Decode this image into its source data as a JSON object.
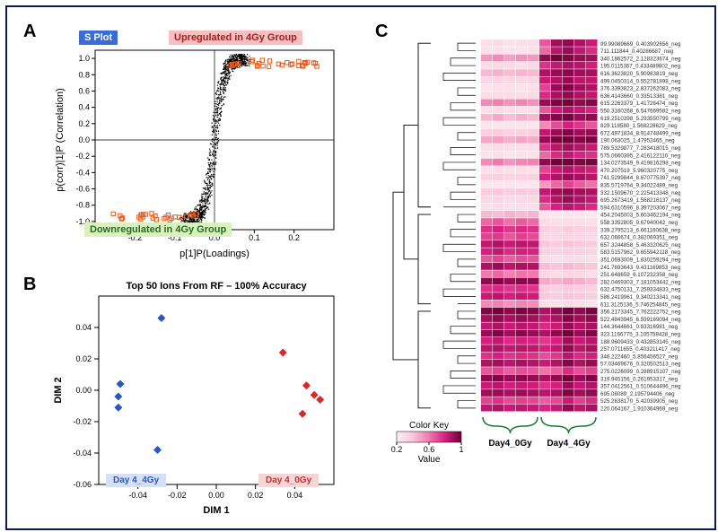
{
  "frame_border_color": "#0a1a5a",
  "panels": {
    "A": "A",
    "B": "B",
    "C": "C"
  },
  "s_plot": {
    "tag_splot": "S Plot",
    "tag_splot_bg": "#3a6bd6",
    "tag_splot_fg": "#ffffff",
    "tag_up": "Upregulated in 4Gy Group",
    "tag_up_bg": "#f6c0c0",
    "tag_up_fg": "#a02020",
    "tag_down": "Downregulated in 4Gy Group",
    "tag_down_bg": "#d9f0c0",
    "tag_down_fg": "#2a6a1a",
    "xlabel": "p[1]P(Loadings)",
    "ylabel": "p(corr)|1|P (Correlation)",
    "xlim": [
      -0.3,
      0.3
    ],
    "ylim": [
      -1.1,
      1.1
    ],
    "xticks": [
      -0.2,
      -0.1,
      0,
      0.1,
      0.2
    ],
    "yticks": [
      -1.0,
      -0.8,
      -0.6,
      -0.4,
      -0.2,
      0,
      0.2,
      0.4,
      0.6,
      0.8,
      1.0
    ],
    "point_color": "#000000",
    "highlight_color": "#e85a1a",
    "highlight_border": "#8a0000"
  },
  "scatter_b": {
    "title": "Top 50 Ions From RF – 100% Accuracy",
    "xlabel": "DIM 1",
    "ylabel": "DIM 2",
    "xlim": [
      -0.06,
      0.06
    ],
    "ylim": [
      -0.06,
      0.06
    ],
    "xticks": [
      -0.04,
      -0.02,
      0.0,
      0.02,
      0.04
    ],
    "yticks": [
      -0.06,
      -0.04,
      -0.02,
      0.0,
      0.02,
      0.04
    ],
    "group_a": {
      "label": "Day 4_4Gy",
      "color": "#2a56c6",
      "bg": "#d6e0f5",
      "points": [
        [
          -0.049,
          0.004
        ],
        [
          -0.05,
          -0.004
        ],
        [
          -0.05,
          -0.011
        ],
        [
          -0.028,
          0.046
        ],
        [
          -0.03,
          -0.038
        ]
      ]
    },
    "group_b": {
      "label": "Day 4_0Gy",
      "color": "#d62a2a",
      "bg": "#f5d6d6",
      "points": [
        [
          0.034,
          0.024
        ],
        [
          0.046,
          0.003
        ],
        [
          0.05,
          -0.003
        ],
        [
          0.053,
          -0.006
        ],
        [
          0.044,
          -0.015
        ]
      ]
    }
  },
  "heatmap": {
    "color_scale": [
      "#fdeef3",
      "#f8c8da",
      "#ef7bac",
      "#d61f7f",
      "#6d0037"
    ],
    "col_labels_left": "Day4_0Gy",
    "col_labels_right": "Day4_4Gy",
    "brace_color": "#1a7a33",
    "color_key_title": "Color Key",
    "color_key_axis": "Value",
    "color_key_ticks": [
      "0.2",
      "0.6",
      "1"
    ],
    "n_cols": 10,
    "rows": [
      {
        "label": "99.99089669_0.403902656_neg",
        "v": [
          0.1,
          0.12,
          0.08,
          0.09,
          0.11,
          0.6,
          0.88,
          0.92,
          0.85,
          0.78
        ]
      },
      {
        "label": "711.111844_0.40286687_neg",
        "v": [
          0.09,
          0.1,
          0.07,
          0.08,
          0.1,
          0.55,
          0.82,
          0.9,
          0.8,
          0.72
        ]
      },
      {
        "label": "340.1862572_2.128323674_neg",
        "v": [
          0.4,
          0.45,
          0.38,
          0.43,
          0.41,
          0.92,
          0.98,
          0.95,
          0.9,
          0.88
        ]
      },
      {
        "label": "195.0115367_0.433489802_neg",
        "v": [
          0.12,
          0.14,
          0.13,
          0.12,
          0.13,
          0.7,
          0.8,
          0.85,
          0.82,
          0.76
        ]
      },
      {
        "label": "616.3623820_5.90983819_neg",
        "v": [
          0.3,
          0.32,
          0.28,
          0.31,
          0.29,
          0.85,
          0.9,
          0.93,
          0.88,
          0.86
        ]
      },
      {
        "label": "499.0450314_0.552781898_neg",
        "v": [
          0.15,
          0.17,
          0.14,
          0.15,
          0.16,
          0.78,
          0.85,
          0.9,
          0.82,
          0.8
        ]
      },
      {
        "label": "376.3393823_2.837262083_neg",
        "v": [
          0.08,
          0.1,
          0.09,
          0.08,
          0.09,
          0.65,
          0.9,
          0.95,
          0.88,
          0.84
        ]
      },
      {
        "label": "636.4143660_0.33513381_neg",
        "v": [
          0.12,
          0.12,
          0.11,
          0.12,
          0.13,
          0.72,
          0.86,
          0.92,
          0.85,
          0.8
        ]
      },
      {
        "label": "615.2263379_1.41726474_neg",
        "v": [
          0.45,
          0.48,
          0.42,
          0.46,
          0.43,
          0.9,
          0.96,
          0.98,
          0.92,
          0.94
        ]
      },
      {
        "label": "550.3160268_6.547669582_neg",
        "v": [
          0.1,
          0.11,
          0.09,
          0.1,
          0.1,
          0.6,
          0.78,
          0.85,
          0.8,
          0.74
        ]
      },
      {
        "label": "619.2510398_5.293550799_neg",
        "v": [
          0.3,
          0.35,
          0.28,
          0.33,
          0.3,
          0.88,
          0.94,
          0.97,
          0.9,
          0.92
        ]
      },
      {
        "label": "829.118580_1.568228629_neg",
        "v": [
          0.05,
          0.06,
          0.05,
          0.05,
          0.06,
          0.45,
          0.62,
          0.75,
          0.68,
          0.6
        ]
      },
      {
        "label": "672.4971834_8.914748499_neg",
        "v": [
          0.2,
          0.22,
          0.18,
          0.19,
          0.21,
          0.8,
          0.9,
          0.95,
          0.88,
          0.9
        ]
      },
      {
        "label": "190.063025_1.47952465_neg",
        "v": [
          0.35,
          0.38,
          0.32,
          0.36,
          0.34,
          0.9,
          0.97,
          0.99,
          0.94,
          0.96
        ]
      },
      {
        "label": "789.5329877_7.283418015_neg",
        "v": [
          0.12,
          0.13,
          0.11,
          0.12,
          0.12,
          0.7,
          0.82,
          0.88,
          0.83,
          0.78
        ]
      },
      {
        "label": "575.0660395_2.416122110_neg",
        "v": [
          0.08,
          0.09,
          0.07,
          0.08,
          0.08,
          0.55,
          0.72,
          0.8,
          0.74,
          0.7
        ]
      },
      {
        "label": "134.0273549_9.419816298_neg",
        "v": [
          0.45,
          0.5,
          0.42,
          0.46,
          0.48,
          0.92,
          0.98,
          0.99,
          0.95,
          0.97
        ]
      },
      {
        "label": "470.207519_5.960320775_neg",
        "v": [
          0.1,
          0.12,
          0.1,
          0.11,
          0.1,
          0.65,
          0.78,
          0.84,
          0.8,
          0.76
        ]
      },
      {
        "label": "741.5299844_8.670775397_neg",
        "v": [
          0.18,
          0.2,
          0.17,
          0.18,
          0.19,
          0.75,
          0.85,
          0.9,
          0.86,
          0.82
        ]
      },
      {
        "label": "835.5719764_9.34022489_neg",
        "v": [
          0.06,
          0.07,
          0.06,
          0.06,
          0.06,
          0.4,
          0.55,
          0.65,
          0.58,
          0.52
        ]
      },
      {
        "label": "332.1509670_2.225413348_neg",
        "v": [
          0.22,
          0.25,
          0.2,
          0.23,
          0.22,
          0.8,
          0.88,
          0.92,
          0.87,
          0.85
        ]
      },
      {
        "label": "695.2673419_1.568216137_neg",
        "v": [
          0.14,
          0.15,
          0.13,
          0.14,
          0.14,
          0.72,
          0.84,
          0.9,
          0.85,
          0.8
        ]
      },
      {
        "label": "594.6310596_8.397203067_neg",
        "v": [
          0.1,
          0.11,
          0.09,
          0.1,
          0.1,
          0.6,
          0.75,
          0.82,
          0.78,
          0.72
        ]
      },
      {
        "label": "454.2045003_5.603462194_neg",
        "v": [
          0.3,
          0.28,
          0.32,
          0.29,
          0.31,
          0.05,
          0.04,
          0.06,
          0.05,
          0.04
        ]
      },
      {
        "label": "558.3352805_9.67940042_neg",
        "v": [
          0.55,
          0.6,
          0.52,
          0.58,
          0.54,
          0.12,
          0.1,
          0.11,
          0.12,
          0.1
        ]
      },
      {
        "label": "339.2795213_6.661160638_neg",
        "v": [
          0.7,
          0.75,
          0.68,
          0.72,
          0.7,
          0.2,
          0.18,
          0.22,
          0.2,
          0.18
        ]
      },
      {
        "label": "632.066674_0.382069351_neg",
        "v": [
          0.65,
          0.68,
          0.6,
          0.66,
          0.63,
          0.15,
          0.14,
          0.16,
          0.15,
          0.13
        ]
      },
      {
        "label": "657.3244858_5.463320625_neg",
        "v": [
          0.8,
          0.85,
          0.78,
          0.82,
          0.8,
          0.25,
          0.22,
          0.26,
          0.24,
          0.22
        ]
      },
      {
        "label": "583.5157962_9.655942118_neg",
        "v": [
          0.75,
          0.8,
          0.72,
          0.76,
          0.74,
          0.2,
          0.18,
          0.2,
          0.19,
          0.17
        ]
      },
      {
        "label": "351.0693009_1.830259294_neg",
        "v": [
          0.6,
          0.65,
          0.58,
          0.62,
          0.6,
          0.12,
          0.1,
          0.13,
          0.11,
          0.1
        ]
      },
      {
        "label": "241.7693643_9.431169853_neg",
        "v": [
          0.85,
          0.9,
          0.82,
          0.86,
          0.84,
          0.28,
          0.26,
          0.3,
          0.27,
          0.25
        ]
      },
      {
        "label": "251.648659_6.107232358_neg",
        "v": [
          0.5,
          0.55,
          0.48,
          0.52,
          0.5,
          0.15,
          0.12,
          0.16,
          0.14,
          0.12
        ]
      },
      {
        "label": "282.0469303_7.181053442_neg",
        "v": [
          0.92,
          0.95,
          0.9,
          0.93,
          0.91,
          0.35,
          0.32,
          0.36,
          0.33,
          0.3
        ]
      },
      {
        "label": "632.4750131_7.259334833_neg",
        "v": [
          0.7,
          0.73,
          0.68,
          0.71,
          0.69,
          0.22,
          0.2,
          0.23,
          0.21,
          0.19
        ]
      },
      {
        "label": "586.2419961_9.340213341_neg",
        "v": [
          0.78,
          0.82,
          0.76,
          0.79,
          0.77,
          0.24,
          0.22,
          0.25,
          0.23,
          0.21
        ]
      },
      {
        "label": "611.3125136_5.746254845_neg",
        "v": [
          0.45,
          0.48,
          0.42,
          0.46,
          0.44,
          0.1,
          0.08,
          0.11,
          0.09,
          0.08
        ]
      },
      {
        "label": "356.2173345_7.762222752_neg",
        "v": [
          0.95,
          0.98,
          0.92,
          0.96,
          0.94,
          0.85,
          0.9,
          0.98,
          0.92,
          0.96
        ]
      },
      {
        "label": "522.4843945_6.599169094_neg",
        "v": [
          0.88,
          0.92,
          0.86,
          0.9,
          0.88,
          0.8,
          0.85,
          0.95,
          0.88,
          0.92
        ]
      },
      {
        "label": "144.3644661_0.83316981_neg",
        "v": [
          0.8,
          0.85,
          0.78,
          0.82,
          0.8,
          0.72,
          0.78,
          0.9,
          0.82,
          0.86
        ]
      },
      {
        "label": "323.1166775_3.105759428_neg",
        "v": [
          0.9,
          0.96,
          0.88,
          0.93,
          0.9,
          0.85,
          0.92,
          0.99,
          0.9,
          0.95
        ]
      },
      {
        "label": "188.9609433_0.432853145_neg",
        "v": [
          0.75,
          0.8,
          0.72,
          0.76,
          0.74,
          0.68,
          0.75,
          0.88,
          0.78,
          0.82
        ]
      },
      {
        "label": "257.0711655_0.403211417_neg",
        "v": [
          0.82,
          0.85,
          0.8,
          0.83,
          0.81,
          0.75,
          0.8,
          0.92,
          0.82,
          0.86
        ]
      },
      {
        "label": "346.222460_5.856456527_neg",
        "v": [
          0.7,
          0.75,
          0.68,
          0.72,
          0.7,
          0.62,
          0.68,
          0.82,
          0.72,
          0.76
        ]
      },
      {
        "label": "57.03469676_0.320502513_neg",
        "v": [
          0.85,
          0.88,
          0.82,
          0.86,
          0.84,
          0.78,
          0.84,
          0.94,
          0.85,
          0.9
        ]
      },
      {
        "label": "275.0226099_0.288915107_neg",
        "v": [
          0.6,
          0.65,
          0.58,
          0.62,
          0.6,
          0.52,
          0.58,
          0.72,
          0.62,
          0.66
        ]
      },
      {
        "label": "319.945156_0.261953317_neg",
        "v": [
          0.92,
          0.95,
          0.9,
          0.93,
          0.91,
          0.86,
          0.92,
          0.99,
          0.9,
          0.96
        ]
      },
      {
        "label": "357.0412561_0.510644496_neg",
        "v": [
          0.78,
          0.82,
          0.76,
          0.79,
          0.77,
          0.7,
          0.76,
          0.9,
          0.8,
          0.84
        ]
      },
      {
        "label": "695.08089_2.195794406_neg",
        "v": [
          0.88,
          0.9,
          0.86,
          0.89,
          0.87,
          0.82,
          0.86,
          0.96,
          0.88,
          0.92
        ]
      },
      {
        "label": "525.2638170_5.42039905_neg",
        "v": [
          0.65,
          0.7,
          0.62,
          0.66,
          0.64,
          0.58,
          0.64,
          0.78,
          0.66,
          0.72
        ]
      },
      {
        "label": "220.064167_1.910364969_neg",
        "v": [
          0.8,
          0.84,
          0.78,
          0.81,
          0.79,
          0.74,
          0.79,
          0.92,
          0.82,
          0.86
        ]
      }
    ]
  }
}
